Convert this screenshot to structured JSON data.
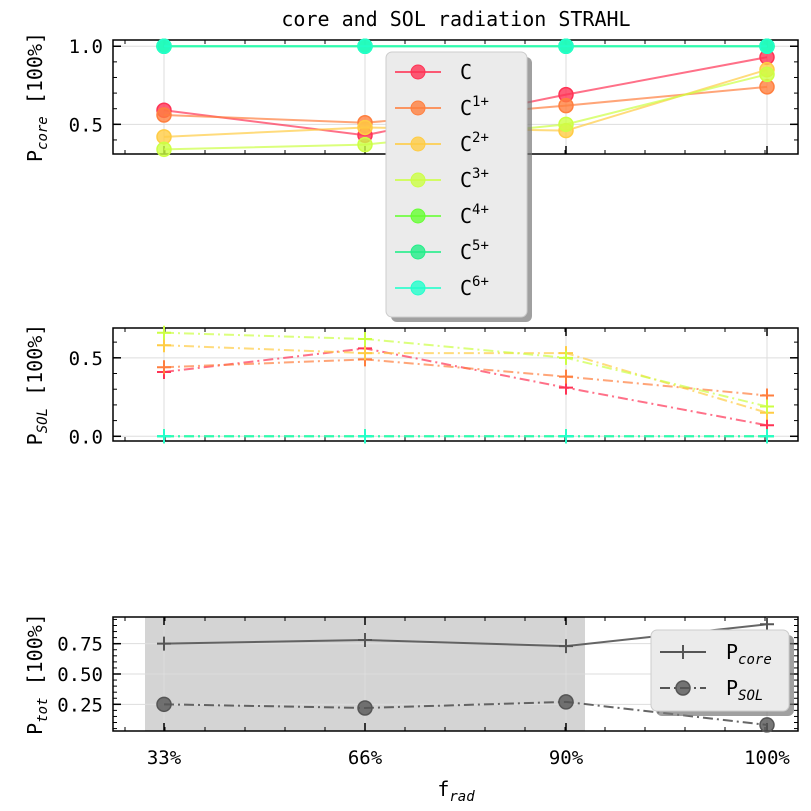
{
  "title": "core and SOL radiation STRAHL",
  "chart_data": [
    {
      "type": "line",
      "panel": "core",
      "ylabel": "P",
      "ylabel_sub": "core",
      "ylabel_suffix": "[100%]",
      "ylim": [
        0.31,
        1.04
      ],
      "yticks": [
        0.5,
        1.0
      ],
      "ytick_labels": [
        "0.5",
        "1.0"
      ],
      "x": [
        33,
        66,
        90,
        100
      ],
      "marker": "circle",
      "grid": true,
      "series": [
        {
          "name": "C",
          "sup": "",
          "color": "#ff3355",
          "values": [
            0.59,
            0.43,
            0.69,
            0.93
          ]
        },
        {
          "name": "C",
          "sup": "1+",
          "color": "#ff7f3f",
          "values": [
            0.56,
            0.51,
            0.62,
            0.74
          ]
        },
        {
          "name": "C",
          "sup": "2+",
          "color": "#ffcc44",
          "values": [
            0.42,
            0.48,
            0.46,
            0.85
          ]
        },
        {
          "name": "C",
          "sup": "3+",
          "color": "#ccff44",
          "values": [
            0.34,
            0.37,
            0.5,
            0.82
          ]
        },
        {
          "name": "C",
          "sup": "4+",
          "color": "#66ff33",
          "values": [
            1.0,
            1.0,
            1.0,
            1.0
          ]
        },
        {
          "name": "C",
          "sup": "5+",
          "color": "#22ee88",
          "values": [
            1.0,
            1.0,
            1.0,
            1.0
          ]
        },
        {
          "name": "C",
          "sup": "6+",
          "color": "#22ffcc",
          "values": [
            1.0,
            1.0,
            1.0,
            1.0
          ]
        }
      ],
      "legend": "upper-center"
    },
    {
      "type": "line",
      "panel": "SOL",
      "ylabel": "P",
      "ylabel_sub": "SOL",
      "ylabel_suffix": "[100%]",
      "ylim": [
        -0.03,
        0.69
      ],
      "yticks": [
        0.0,
        0.5
      ],
      "ytick_labels": [
        "0.0",
        "0.5"
      ],
      "x": [
        33,
        66,
        90,
        100
      ],
      "marker": "plus",
      "grid": true,
      "series": [
        {
          "color": "#ff3355",
          "values": [
            0.41,
            0.56,
            0.31,
            0.07
          ]
        },
        {
          "color": "#ff7f3f",
          "values": [
            0.44,
            0.49,
            0.38,
            0.26
          ]
        },
        {
          "color": "#ffcc44",
          "values": [
            0.58,
            0.53,
            0.53,
            0.15
          ]
        },
        {
          "color": "#ccff44",
          "values": [
            0.66,
            0.62,
            0.5,
            0.19
          ]
        },
        {
          "color": "#66ff33",
          "values": [
            0.0,
            0.0,
            0.0,
            0.0
          ]
        },
        {
          "color": "#22ee88",
          "values": [
            0.0,
            0.0,
            0.0,
            0.0
          ]
        },
        {
          "color": "#22ffcc",
          "values": [
            0.0,
            0.0,
            0.0,
            0.0
          ]
        }
      ]
    },
    {
      "type": "line",
      "panel": "tot",
      "ylabel": "P",
      "ylabel_sub": "tot",
      "ylabel_suffix": "[100%]",
      "xlabel": "f",
      "xlabel_sub": "rad",
      "ylim": [
        0.03,
        0.97
      ],
      "yticks": [
        0.25,
        0.5,
        0.75
      ],
      "ytick_labels": [
        "0.25",
        "0.50",
        "0.75"
      ],
      "x": [
        33,
        66,
        90,
        100
      ],
      "xtick_labels": [
        "33%",
        "66%",
        "90%",
        "100%"
      ],
      "shaded_region": "33%–90%",
      "grid": true,
      "series": [
        {
          "name": "P",
          "sub": "core",
          "color": "#555555",
          "marker": "plus",
          "linestyle": "solid",
          "values": [
            0.75,
            0.78,
            0.73,
            0.91
          ]
        },
        {
          "name": "P",
          "sub": "SOL",
          "color": "#555555",
          "marker": "circle",
          "linestyle": "dashdot",
          "values": [
            0.25,
            0.22,
            0.27,
            0.08
          ]
        }
      ],
      "legend": "upper-right"
    }
  ]
}
